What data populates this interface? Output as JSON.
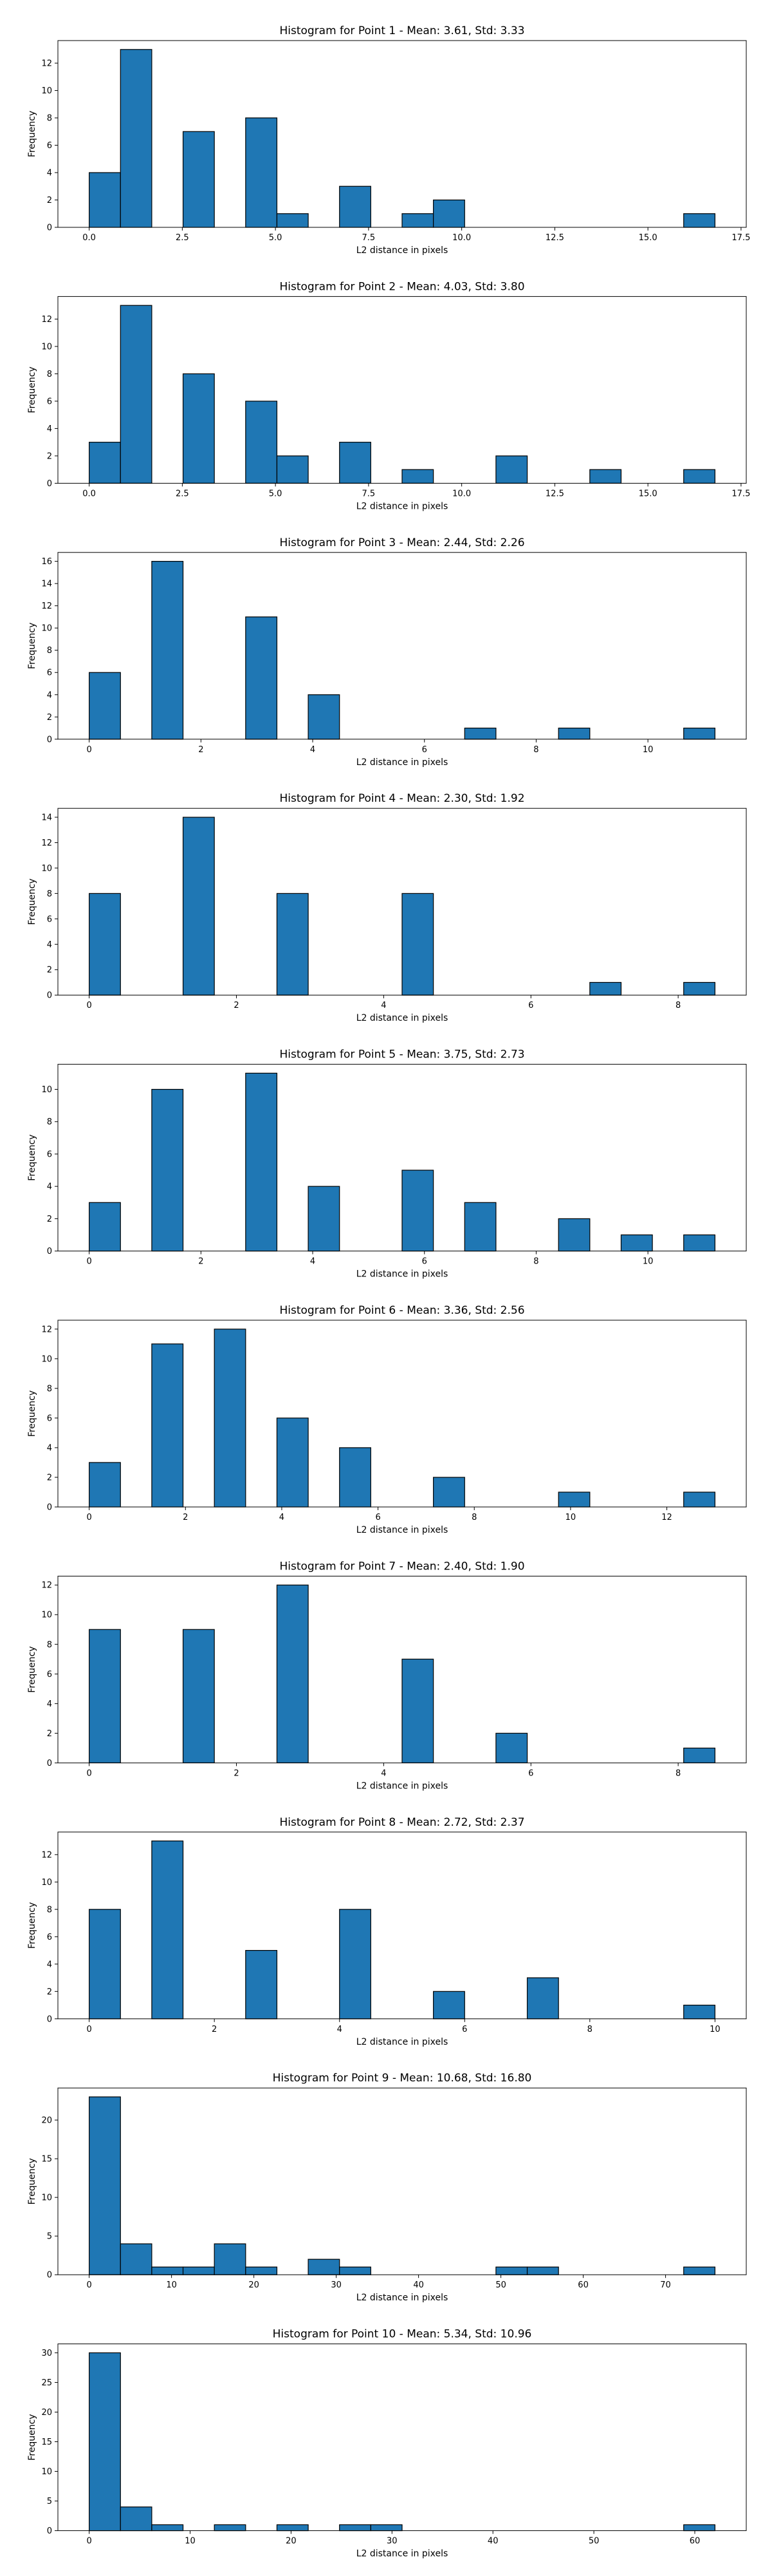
{
  "colors": {
    "bar_fill": "#1f77b4",
    "bar_edge": "#000000",
    "axes": "#000000",
    "background": "#ffffff"
  },
  "chart_data": [
    {
      "type": "bar",
      "title": "Histogram for Point 1 - Mean: 3.61, Std: 3.33",
      "xlabel": "L2 distance in pixels",
      "ylabel": "Frequency",
      "grid": false,
      "xlim": [
        -0.84,
        17.64
      ],
      "ylim": [
        0,
        13.65
      ],
      "xticks": [
        0.0,
        2.5,
        5.0,
        7.5,
        10.0,
        12.5,
        15.0,
        17.5
      ],
      "xtick_labels": [
        "0.0",
        "2.5",
        "5.0",
        "7.5",
        "10.0",
        "12.5",
        "15.0",
        "17.5"
      ],
      "yticks": [
        0,
        2,
        4,
        6,
        8,
        10,
        12
      ],
      "bin_edges": [
        0.0,
        0.84,
        1.68,
        2.52,
        3.36,
        4.2,
        5.04,
        5.88,
        6.72,
        7.56,
        8.4,
        9.24,
        10.08,
        10.92,
        11.76,
        12.6,
        13.44,
        14.28,
        15.12,
        15.96,
        16.8
      ],
      "counts": [
        4,
        13,
        0,
        7,
        0,
        8,
        1,
        0,
        3,
        0,
        1,
        2,
        0,
        0,
        0,
        0,
        0,
        0,
        0,
        1
      ]
    },
    {
      "type": "bar",
      "title": "Histogram for Point 2 - Mean: 4.03, Std: 3.80",
      "xlabel": "L2 distance in pixels",
      "ylabel": "Frequency",
      "grid": false,
      "xlim": [
        -0.84,
        17.64
      ],
      "ylim": [
        0,
        13.65
      ],
      "xticks": [
        0.0,
        2.5,
        5.0,
        7.5,
        10.0,
        12.5,
        15.0,
        17.5
      ],
      "xtick_labels": [
        "0.0",
        "2.5",
        "5.0",
        "7.5",
        "10.0",
        "12.5",
        "15.0",
        "17.5"
      ],
      "yticks": [
        0,
        2,
        4,
        6,
        8,
        10,
        12
      ],
      "bin_edges": [
        0.0,
        0.84,
        1.68,
        2.52,
        3.36,
        4.2,
        5.04,
        5.88,
        6.72,
        7.56,
        8.4,
        9.24,
        10.08,
        10.92,
        11.76,
        12.6,
        13.44,
        14.28,
        15.12,
        15.96,
        16.8
      ],
      "counts": [
        3,
        13,
        0,
        8,
        0,
        6,
        2,
        0,
        3,
        0,
        1,
        0,
        0,
        2,
        0,
        0,
        1,
        0,
        0,
        1
      ]
    },
    {
      "type": "bar",
      "title": "Histogram for Point 3 - Mean: 2.44, Std: 2.26",
      "xlabel": "L2 distance in pixels",
      "ylabel": "Frequency",
      "grid": false,
      "xlim": [
        -0.56,
        11.76
      ],
      "ylim": [
        0,
        16.8
      ],
      "xticks": [
        0,
        2,
        4,
        6,
        8,
        10
      ],
      "xtick_labels": [
        "0",
        "2",
        "4",
        "6",
        "8",
        "10"
      ],
      "yticks": [
        0,
        2,
        4,
        6,
        8,
        10,
        12,
        14,
        16
      ],
      "bin_edges": [
        0.0,
        0.56,
        1.12,
        1.68,
        2.24,
        2.8,
        3.36,
        3.92,
        4.48,
        5.04,
        5.6,
        6.16,
        6.72,
        7.28,
        7.84,
        8.4,
        8.96,
        9.52,
        10.08,
        10.64,
        11.2
      ],
      "counts": [
        6,
        0,
        16,
        0,
        0,
        11,
        0,
        4,
        0,
        0,
        0,
        0,
        1,
        0,
        0,
        1,
        0,
        0,
        0,
        1
      ]
    },
    {
      "type": "bar",
      "title": "Histogram for Point 4 - Mean: 2.30, Std: 1.92",
      "xlabel": "L2 distance in pixels",
      "ylabel": "Frequency",
      "grid": false,
      "xlim": [
        -0.425,
        8.925
      ],
      "ylim": [
        0,
        14.7
      ],
      "xticks": [
        0,
        2,
        4,
        6,
        8
      ],
      "xtick_labels": [
        "0",
        "2",
        "4",
        "6",
        "8"
      ],
      "yticks": [
        0,
        2,
        4,
        6,
        8,
        10,
        12,
        14
      ],
      "bin_edges": [
        0.0,
        0.425,
        0.85,
        1.275,
        1.7,
        2.125,
        2.55,
        2.975,
        3.4,
        3.825,
        4.25,
        4.675,
        5.1,
        5.525,
        5.95,
        6.375,
        6.8,
        7.225,
        7.65,
        8.075,
        8.5
      ],
      "counts": [
        8,
        0,
        0,
        14,
        0,
        0,
        8,
        0,
        0,
        0,
        8,
        0,
        0,
        0,
        0,
        0,
        1,
        0,
        0,
        1
      ]
    },
    {
      "type": "bar",
      "title": "Histogram for Point 5 - Mean: 3.75, Std: 2.73",
      "xlabel": "L2 distance in pixels",
      "ylabel": "Frequency",
      "grid": false,
      "xlim": [
        -0.56,
        11.76
      ],
      "ylim": [
        0,
        11.55
      ],
      "xticks": [
        0,
        2,
        4,
        6,
        8,
        10
      ],
      "xtick_labels": [
        "0",
        "2",
        "4",
        "6",
        "8",
        "10"
      ],
      "yticks": [
        0,
        2,
        4,
        6,
        8,
        10
      ],
      "bin_edges": [
        0.0,
        0.56,
        1.12,
        1.68,
        2.24,
        2.8,
        3.36,
        3.92,
        4.48,
        5.04,
        5.6,
        6.16,
        6.72,
        7.28,
        7.84,
        8.4,
        8.96,
        9.52,
        10.08,
        10.64,
        11.2
      ],
      "counts": [
        3,
        0,
        10,
        0,
        0,
        11,
        0,
        4,
        0,
        0,
        5,
        0,
        3,
        0,
        0,
        2,
        0,
        1,
        0,
        1
      ]
    },
    {
      "type": "bar",
      "title": "Histogram for Point 6 - Mean: 3.36, Std: 2.56",
      "xlabel": "L2 distance in pixels",
      "ylabel": "Frequency",
      "grid": false,
      "xlim": [
        -0.65,
        13.65
      ],
      "ylim": [
        0,
        12.6
      ],
      "xticks": [
        0,
        2,
        4,
        6,
        8,
        10,
        12
      ],
      "xtick_labels": [
        "0",
        "2",
        "4",
        "6",
        "8",
        "10",
        "12"
      ],
      "yticks": [
        0,
        2,
        4,
        6,
        8,
        10,
        12
      ],
      "bin_edges": [
        0.0,
        0.65,
        1.3,
        1.95,
        2.6,
        3.25,
        3.9,
        4.55,
        5.2,
        5.85,
        6.5,
        7.15,
        7.8,
        8.45,
        9.1,
        9.75,
        10.4,
        11.05,
        11.7,
        12.35,
        13.0
      ],
      "counts": [
        3,
        0,
        11,
        0,
        12,
        0,
        6,
        0,
        4,
        0,
        0,
        2,
        0,
        0,
        0,
        1,
        0,
        0,
        0,
        1
      ]
    },
    {
      "type": "bar",
      "title": "Histogram for Point 7 - Mean: 2.40, Std: 1.90",
      "xlabel": "L2 distance in pixels",
      "ylabel": "Frequency",
      "grid": false,
      "xlim": [
        -0.425,
        8.925
      ],
      "ylim": [
        0,
        12.6
      ],
      "xticks": [
        0,
        2,
        4,
        6,
        8
      ],
      "xtick_labels": [
        "0",
        "2",
        "4",
        "6",
        "8"
      ],
      "yticks": [
        0,
        2,
        4,
        6,
        8,
        10,
        12
      ],
      "bin_edges": [
        0.0,
        0.425,
        0.85,
        1.275,
        1.7,
        2.125,
        2.55,
        2.975,
        3.4,
        3.825,
        4.25,
        4.675,
        5.1,
        5.525,
        5.95,
        6.375,
        6.8,
        7.225,
        7.65,
        8.075,
        8.5
      ],
      "counts": [
        9,
        0,
        0,
        9,
        0,
        0,
        12,
        0,
        0,
        0,
        7,
        0,
        0,
        2,
        0,
        0,
        0,
        0,
        0,
        1
      ]
    },
    {
      "type": "bar",
      "title": "Histogram for Point 8 - Mean: 2.72, Std: 2.37",
      "xlabel": "L2 distance in pixels",
      "ylabel": "Frequency",
      "grid": false,
      "xlim": [
        -0.5,
        10.5
      ],
      "ylim": [
        0,
        13.65
      ],
      "xticks": [
        0,
        2,
        4,
        6,
        8,
        10
      ],
      "xtick_labels": [
        "0",
        "2",
        "4",
        "6",
        "8",
        "10"
      ],
      "yticks": [
        0,
        2,
        4,
        6,
        8,
        10,
        12
      ],
      "bin_edges": [
        0.0,
        0.5,
        1.0,
        1.5,
        2.0,
        2.5,
        3.0,
        3.5,
        4.0,
        4.5,
        5.0,
        5.5,
        6.0,
        6.5,
        7.0,
        7.5,
        8.0,
        8.5,
        9.0,
        9.5,
        10.0
      ],
      "counts": [
        8,
        0,
        13,
        0,
        0,
        5,
        0,
        0,
        8,
        0,
        0,
        2,
        0,
        0,
        3,
        0,
        0,
        0,
        0,
        1
      ]
    },
    {
      "type": "bar",
      "title": "Histogram for Point 9 - Mean: 10.68, Std: 16.80",
      "xlabel": "L2 distance in pixels",
      "ylabel": "Frequency",
      "grid": false,
      "xlim": [
        -3.8,
        79.8
      ],
      "ylim": [
        0,
        24.15
      ],
      "xticks": [
        0,
        10,
        20,
        30,
        40,
        50,
        60,
        70
      ],
      "xtick_labels": [
        "0",
        "10",
        "20",
        "30",
        "40",
        "50",
        "60",
        "70"
      ],
      "yticks": [
        0,
        5,
        10,
        15,
        20
      ],
      "bin_edges": [
        0.0,
        3.8,
        7.6,
        11.4,
        15.2,
        19.0,
        22.8,
        26.6,
        30.4,
        34.2,
        38.0,
        41.8,
        45.6,
        49.4,
        53.2,
        57.0,
        60.8,
        64.6,
        68.4,
        72.2,
        76.0
      ],
      "counts": [
        23,
        4,
        1,
        1,
        4,
        1,
        0,
        2,
        1,
        0,
        0,
        0,
        0,
        1,
        1,
        0,
        0,
        0,
        0,
        1
      ]
    },
    {
      "type": "bar",
      "title": "Histogram for Point 10 - Mean: 5.34, Std: 10.96",
      "xlabel": "L2 distance in pixels",
      "ylabel": "Frequency",
      "grid": false,
      "xlim": [
        -3.1,
        65.1
      ],
      "ylim": [
        0,
        31.5
      ],
      "xticks": [
        0,
        10,
        20,
        30,
        40,
        50,
        60
      ],
      "xtick_labels": [
        "0",
        "10",
        "20",
        "30",
        "40",
        "50",
        "60"
      ],
      "yticks": [
        0,
        5,
        10,
        15,
        20,
        25,
        30
      ],
      "bin_edges": [
        0.0,
        3.1,
        6.2,
        9.3,
        12.4,
        15.5,
        18.6,
        21.7,
        24.8,
        27.9,
        31.0,
        34.1,
        37.2,
        40.3,
        43.4,
        46.5,
        49.6,
        52.7,
        55.8,
        58.9,
        62.0
      ],
      "counts": [
        30,
        4,
        1,
        0,
        1,
        0,
        1,
        0,
        1,
        1,
        0,
        0,
        0,
        0,
        0,
        0,
        0,
        0,
        0,
        1
      ]
    }
  ]
}
